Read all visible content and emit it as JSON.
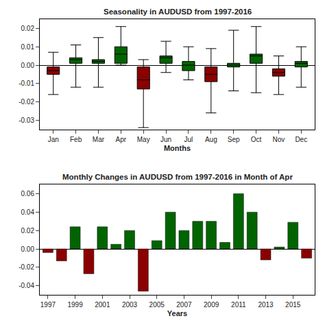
{
  "chart_data": [
    {
      "type": "box",
      "title": "Seasonality in AUDUSD from 1997-2016",
      "x_label": "Months",
      "categories": [
        "Jan",
        "Feb",
        "Mar",
        "Apr",
        "May",
        "Jun",
        "Jul",
        "Aug",
        "Sep",
        "Oct",
        "Nov",
        "Dec"
      ],
      "median": [
        -0.003,
        0.003,
        0.002,
        0.006,
        -0.008,
        0.004,
        0.0,
        -0.005,
        0.0,
        0.005,
        -0.004,
        0.001
      ],
      "q1": [
        -0.005,
        0.001,
        0.001,
        0.001,
        -0.013,
        0.001,
        -0.003,
        -0.009,
        -0.001,
        0.001,
        -0.006,
        -0.001
      ],
      "q3": [
        -0.001,
        0.004,
        0.003,
        0.01,
        -0.001,
        0.005,
        0.002,
        -0.001,
        0.001,
        0.006,
        -0.002,
        0.002
      ],
      "whisker_low": [
        -0.016,
        -0.012,
        -0.012,
        0.0,
        -0.034,
        -0.004,
        -0.008,
        -0.026,
        -0.014,
        -0.015,
        -0.016,
        -0.012
      ],
      "whisker_high": [
        0.007,
        0.011,
        0.015,
        0.021,
        0.003,
        0.013,
        0.01,
        0.009,
        0.019,
        0.021,
        0.005,
        0.01
      ],
      "colors": [
        "#8B0000",
        "#006400",
        "#006400",
        "#006400",
        "#8B0000",
        "#006400",
        "#006400",
        "#8B0000",
        "#006400",
        "#006400",
        "#8B0000",
        "#006400"
      ],
      "ylim": [
        -0.035,
        0.025
      ],
      "yticks": [
        -0.03,
        -0.02,
        -0.01,
        {
          "value": 0,
          "label": "0.00"
        },
        0.01,
        0.02
      ],
      "grid": false
    },
    {
      "type": "bar",
      "title": "Monthly Changes in AUDUSD from 1997-2016 in Month of Apr",
      "x_label": "Years",
      "categories": [
        "1997",
        null,
        "1999",
        null,
        "2001",
        null,
        "2003",
        null,
        "2005",
        null,
        "2007",
        null,
        "2009",
        null,
        "2011",
        null,
        "2013",
        null,
        "2015",
        null
      ],
      "values": [
        -0.004,
        -0.013,
        0.024,
        -0.027,
        0.024,
        0.005,
        0.02,
        -0.046,
        0.009,
        0.04,
        0.02,
        0.03,
        0.03,
        0.007,
        0.06,
        0.04,
        -0.012,
        0.002,
        0.029,
        -0.01
      ],
      "colors": [
        "#8B0000",
        "#8B0000",
        "#006400",
        "#8B0000",
        "#006400",
        "#006400",
        "#006400",
        "#8B0000",
        "#006400",
        "#006400",
        "#006400",
        "#006400",
        "#006400",
        "#006400",
        "#006400",
        "#006400",
        "#8B0000",
        "#006400",
        "#006400",
        "#8B0000"
      ],
      "ylim": [
        -0.05,
        0.07
      ],
      "yticks": [
        -0.04,
        -0.02,
        {
          "value": 0,
          "label": "0.00"
        },
        0.02,
        0.04,
        0.06
      ],
      "grid": false
    }
  ]
}
